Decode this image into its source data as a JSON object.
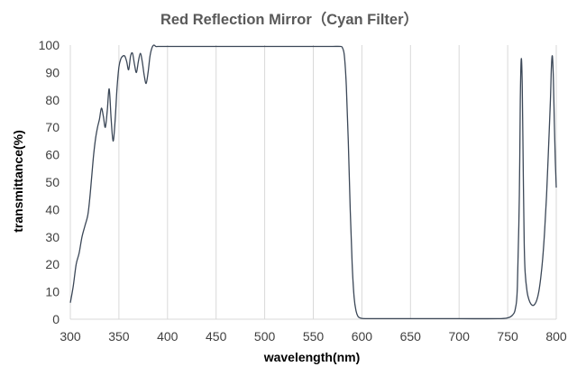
{
  "chart_data": {
    "type": "line",
    "title": "Red Reflection Mirror（Cyan Filter）",
    "xlabel": "wavelength(nm)",
    "ylabel": "transmittance(%)",
    "xlim": [
      300,
      800
    ],
    "ylim": [
      0,
      100
    ],
    "xticks": [
      "300",
      "350",
      "400",
      "450",
      "500",
      "550",
      "600",
      "650",
      "700",
      "750",
      "800"
    ],
    "yticks": [
      "0",
      "10",
      "20",
      "30",
      "40",
      "50",
      "60",
      "70",
      "80",
      "90",
      "100"
    ],
    "grid": "vertical",
    "legend": "none",
    "line_color": "#3b4757",
    "series": [
      {
        "x": [
          300,
          303,
          306,
          309,
          312,
          315,
          318,
          320,
          322,
          324,
          326,
          328,
          330,
          332,
          334,
          336,
          338,
          340,
          342,
          344,
          346,
          348,
          350,
          352,
          354,
          356,
          358,
          360,
          362,
          364,
          366,
          368,
          370,
          372,
          374,
          376,
          378,
          380,
          382,
          384,
          386,
          388,
          390,
          395,
          400,
          450,
          500,
          550,
          560,
          570,
          578,
          580,
          582,
          584,
          586,
          588,
          590,
          592,
          594,
          596,
          598,
          600,
          605,
          610,
          650,
          700,
          740,
          750,
          755,
          758,
          760,
          762,
          763,
          764,
          765,
          766,
          767,
          768,
          770,
          772,
          774,
          776,
          778,
          780,
          782,
          784,
          786,
          788,
          790,
          792,
          794,
          795,
          796,
          797,
          798,
          799,
          800
        ],
        "y": [
          6,
          12,
          20,
          24,
          30,
          34,
          38,
          44,
          52,
          60,
          66,
          70,
          73,
          77,
          74,
          70,
          76,
          84,
          73,
          65,
          72,
          84,
          92,
          95,
          96,
          96,
          94,
          91,
          96,
          97,
          93,
          90,
          94,
          97,
          94,
          89,
          86,
          90,
          96,
          99,
          100,
          99.5,
          99.5,
          99.5,
          99.5,
          99.5,
          99.5,
          99.5,
          99.5,
          99.5,
          99.5,
          99,
          96,
          85,
          65,
          40,
          20,
          8,
          3,
          1,
          0.5,
          0.3,
          0.2,
          0.2,
          0.2,
          0.2,
          0.2,
          0.5,
          1.5,
          4,
          12,
          45,
          80,
          95,
          85,
          55,
          28,
          17,
          10,
          7,
          5.5,
          5,
          5.5,
          7,
          10,
          15,
          22,
          32,
          45,
          62,
          80,
          92,
          96,
          88,
          72,
          58,
          48
        ]
      }
    ]
  }
}
